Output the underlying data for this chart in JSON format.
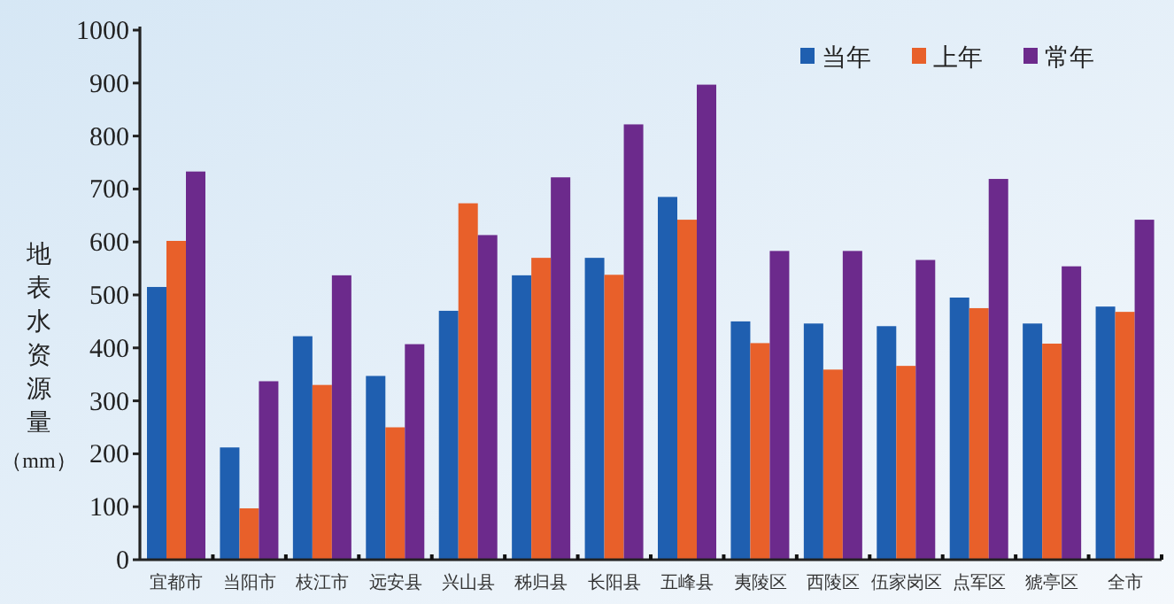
{
  "chart_data": {
    "type": "bar",
    "ylabel": "地表水资源量（mm）",
    "categories": [
      "宜都市",
      "当阳市",
      "枝江市",
      "远安县",
      "兴山县",
      "秭归县",
      "长阳县",
      "五峰县",
      "夷陵区",
      "西陵区",
      "伍家岗区",
      "点军区",
      "猇亭区",
      "全市"
    ],
    "series": [
      {
        "name": "当年",
        "color": "#1f5fb0",
        "values": [
          515,
          212,
          422,
          347,
          470,
          537,
          570,
          685,
          450,
          446,
          441,
          495,
          446,
          478
        ]
      },
      {
        "name": "上年",
        "color": "#e8602a",
        "values": [
          602,
          97,
          330,
          250,
          673,
          570,
          538,
          642,
          409,
          359,
          366,
          475,
          408,
          468
        ]
      },
      {
        "name": "常年",
        "color": "#6c2a8c",
        "values": [
          733,
          337,
          537,
          407,
          613,
          722,
          822,
          897,
          583,
          583,
          566,
          719,
          554,
          642
        ]
      }
    ],
    "ylim": [
      0,
      1000
    ],
    "yticks": [
      0,
      100,
      200,
      300,
      400,
      500,
      600,
      700,
      800,
      900,
      1000
    ],
    "legend": "top right"
  }
}
